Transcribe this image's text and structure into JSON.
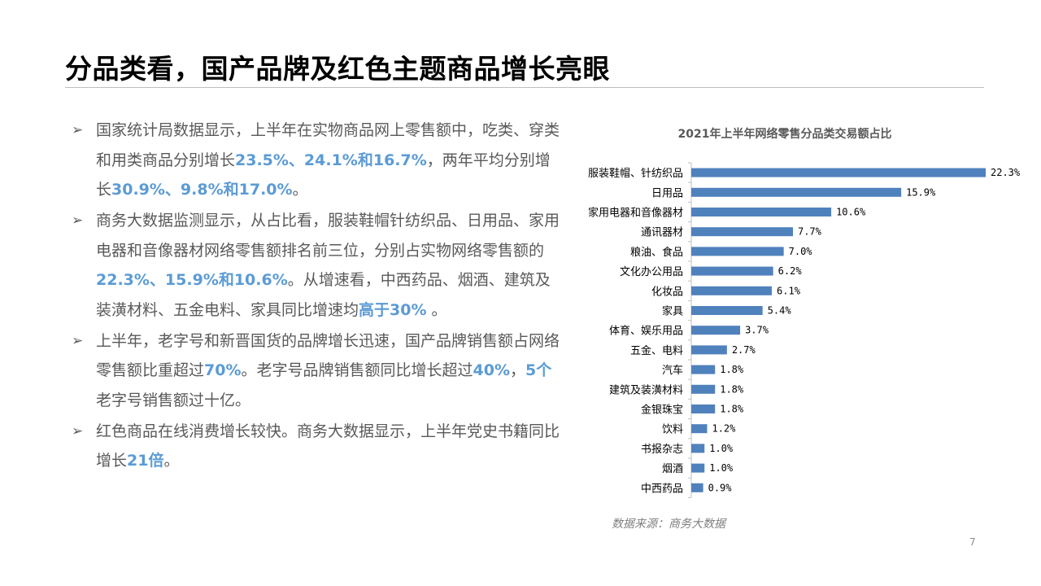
{
  "slide": {
    "title": "分品类看，国产品牌及红色主题商品增长亮眼",
    "page_number": "7",
    "source": "数据来源：商务大数据",
    "bullet_marker": "➢",
    "bullets": [
      [
        {
          "t": "国家统计局数据显示，上半年在实物商品网上零售额中，吃类、穿类和用类商品分别增长",
          "h": false
        },
        {
          "t": "23.5%、24.1%和16.7%",
          "h": true
        },
        {
          "t": "，两年平均分别增长",
          "h": false
        },
        {
          "t": "30.9%、9.8%和17.0%",
          "h": true
        },
        {
          "t": "。",
          "h": false
        }
      ],
      [
        {
          "t": "商务大数据监测显示，从占比看，服装鞋帽针纺织品、日用品、家用电器和音像器材网络零售额排名前三位，分别占实物网络零售额的",
          "h": false
        },
        {
          "t": "22.3%、15.9%和10.6%",
          "h": true
        },
        {
          "t": "。从增速看，中西药品、烟酒、建筑及装潢材料、五金电料、家具同比增速均",
          "h": false
        },
        {
          "t": "高于30%",
          "h": true
        },
        {
          "t": " 。",
          "h": false
        }
      ],
      [
        {
          "t": "上半年，老字号和新晋国货的品牌增长迅速，国产品牌销售额占网络零售额比重超过",
          "h": false
        },
        {
          "t": "70%",
          "h": true
        },
        {
          "t": "。老字号品牌销售额同比增长超过",
          "h": false
        },
        {
          "t": "40%",
          "h": true
        },
        {
          "t": "，",
          "h": false
        },
        {
          "t": "5个",
          "h": true
        },
        {
          "t": "老字号销售额过十亿。",
          "h": false
        }
      ],
      [
        {
          "t": "红色商品在线消费增长较快。商务大数据显示，上半年党史书籍同比增长",
          "h": false
        },
        {
          "t": "21倍",
          "h": true
        },
        {
          "t": "。",
          "h": false
        }
      ]
    ]
  },
  "chart_data": {
    "type": "bar",
    "orientation": "horizontal",
    "title": "2021年上半年网络零售分品类交易额占比",
    "categories": [
      "服装鞋帽、针纺织品",
      "日用品",
      "家用电器和音像器材",
      "通讯器材",
      "粮油、食品",
      "文化办公用品",
      "化妆品",
      "家具",
      "体育、娱乐用品",
      "五金、电料",
      "汽车",
      "建筑及装潢材料",
      "金银珠宝",
      "饮料",
      "书报杂志",
      "烟酒",
      "中西药品"
    ],
    "values": [
      22.3,
      15.9,
      10.6,
      7.7,
      7.0,
      6.2,
      6.1,
      5.4,
      3.7,
      2.7,
      1.8,
      1.8,
      1.8,
      1.2,
      1.0,
      1.0,
      0.9
    ],
    "data_labels": [
      "22.3%",
      "15.9%",
      "10.6%",
      "7.7%",
      "7.0%",
      "6.2%",
      "6.1%",
      "5.4%",
      "3.7%",
      "2.7%",
      "1.8%",
      "1.8%",
      "1.8%",
      "1.2%",
      "1.0%",
      "1.0%",
      "0.9%"
    ],
    "xlim": [
      0,
      22.3
    ],
    "bar_color": "#4f81bd",
    "axis_color": "#bfbfbf",
    "grid": false,
    "legend": "none",
    "xlabel": "",
    "ylabel": ""
  }
}
